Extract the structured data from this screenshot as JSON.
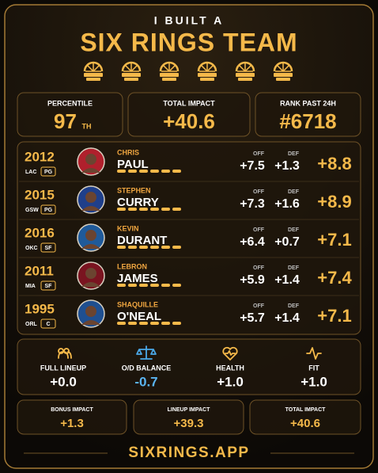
{
  "header": {
    "kicker": "I BUILT A",
    "title": "SIX RINGS TEAM"
  },
  "stats": [
    {
      "label": "PERCENTILE",
      "value": "97",
      "suffix": "TH"
    },
    {
      "label": "TOTAL IMPACT",
      "value": "+40.6"
    },
    {
      "label": "RANK PAST 24H",
      "value": "#6718"
    }
  ],
  "players": [
    {
      "year": "2012",
      "team": "LAC",
      "position": "PG",
      "first_name": "CHRIS",
      "last_name": "PAUL",
      "off_label": "OFF",
      "off": "+7.5",
      "def_label": "DEF",
      "def": "+1.3",
      "total": "+8.8"
    },
    {
      "year": "2015",
      "team": "GSW",
      "position": "PG",
      "first_name": "STEPHEN",
      "last_name": "CURRY",
      "off_label": "OFF",
      "off": "+7.3",
      "def_label": "DEF",
      "def": "+1.6",
      "total": "+8.9"
    },
    {
      "year": "2016",
      "team": "OKC",
      "position": "SF",
      "first_name": "KEVIN",
      "last_name": "DURANT",
      "off_label": "OFF",
      "off": "+6.4",
      "def_label": "DEF",
      "def": "+0.7",
      "total": "+7.1"
    },
    {
      "year": "2011",
      "team": "MIA",
      "position": "SF",
      "first_name": "LEBRON",
      "last_name": "JAMES",
      "off_label": "OFF",
      "off": "+5.9",
      "def_label": "DEF",
      "def": "+1.4",
      "total": "+7.4"
    },
    {
      "year": "1995",
      "team": "ORL",
      "position": "C",
      "first_name": "SHAQUILLE",
      "last_name": "O'NEAL",
      "off_label": "OFF",
      "off": "+5.7",
      "def_label": "DEF",
      "def": "+1.4",
      "total": "+7.1"
    }
  ],
  "metrics": [
    {
      "label": "FULL LINEUP",
      "value": "+0.0"
    },
    {
      "label": "O/D BALANCE",
      "value": "-0.7"
    },
    {
      "label": "HEALTH",
      "value": "+1.0"
    },
    {
      "label": "FIT",
      "value": "+1.0"
    }
  ],
  "impacts": [
    {
      "label": "BONUS IMPACT",
      "value": "+1.3"
    },
    {
      "label": "LINEUP IMPACT",
      "value": "+39.3"
    },
    {
      "label": "TOTAL IMPACT",
      "value": "+40.6"
    }
  ],
  "footer": "SIXRINGS.APP"
}
